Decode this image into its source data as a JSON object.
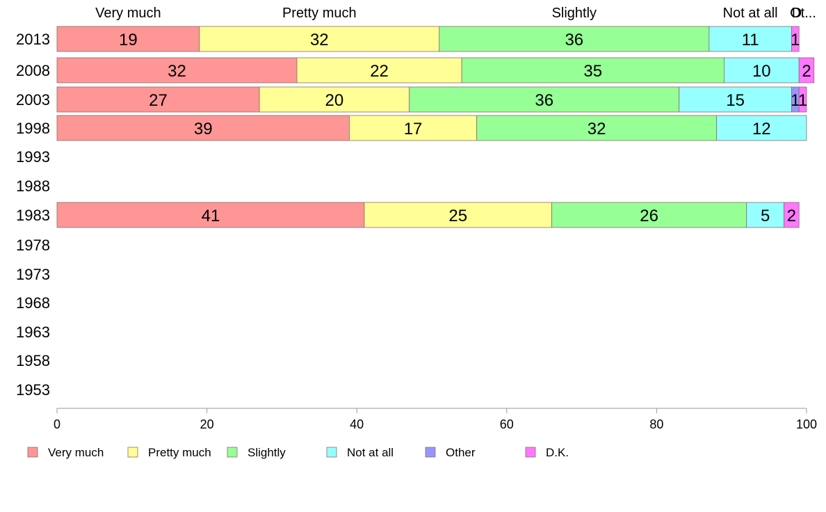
{
  "chart_data": {
    "type": "bar",
    "orientation": "horizontal",
    "stacked": true,
    "categories": [
      "2013",
      "2008",
      "2003",
      "1998",
      "1993",
      "1988",
      "1983",
      "1978",
      "1973",
      "1968",
      "1963",
      "1958",
      "1953"
    ],
    "series": [
      {
        "name": "Very much",
        "color": "#ff9696",
        "values": [
          19,
          32,
          27,
          39,
          null,
          null,
          41,
          null,
          null,
          null,
          null,
          null,
          null
        ]
      },
      {
        "name": "Pretty much",
        "color": "#ffff96",
        "values": [
          32,
          22,
          20,
          17,
          null,
          null,
          25,
          null,
          null,
          null,
          null,
          null,
          null
        ]
      },
      {
        "name": "Slightly",
        "color": "#96ff96",
        "values": [
          36,
          35,
          36,
          32,
          null,
          null,
          26,
          null,
          null,
          null,
          null,
          null,
          null
        ]
      },
      {
        "name": "Not at all",
        "color": "#96ffff",
        "values": [
          11,
          10,
          15,
          12,
          null,
          null,
          5,
          null,
          null,
          null,
          null,
          null,
          null
        ]
      },
      {
        "name": "Other",
        "color": "#9696ff",
        "values": [
          0,
          0,
          1,
          0,
          null,
          null,
          0,
          null,
          null,
          null,
          null,
          null,
          null
        ]
      },
      {
        "name": "D.K.",
        "color": "#ff78ff",
        "values": [
          1,
          2,
          1,
          0,
          null,
          null,
          2,
          null,
          null,
          null,
          null,
          null,
          null
        ]
      }
    ],
    "top_labels": [
      "Very much",
      "Pretty much",
      "Slightly",
      "Not at all",
      "Ot..."
    ],
    "top_label_d": "D",
    "xlim": [
      0,
      100
    ],
    "xticks": [
      0,
      20,
      40,
      60,
      80,
      100
    ],
    "grid": false,
    "legend_position": "bottom"
  }
}
